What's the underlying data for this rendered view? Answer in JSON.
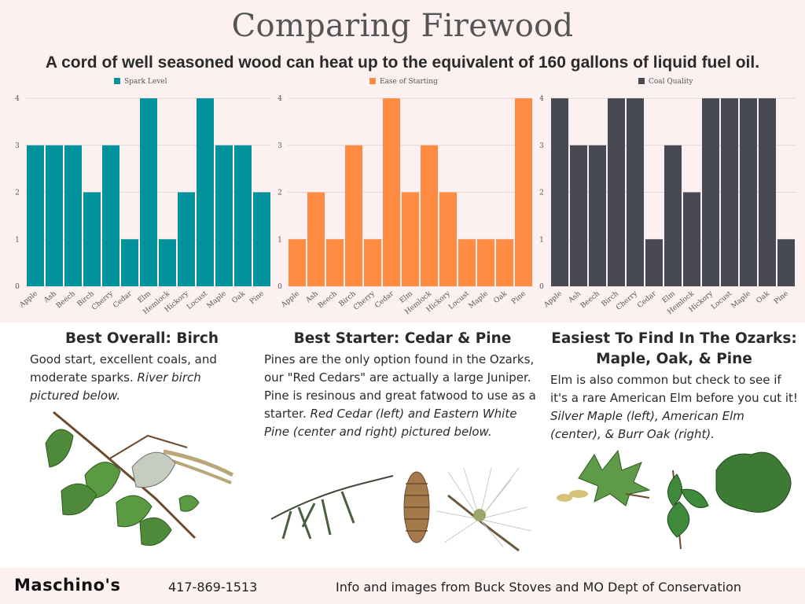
{
  "title": "Comparing Firewood",
  "subtitle": "A cord of well seasoned wood can heat up to the equivalent of 160 gallons of liquid fuel oil.",
  "colors": {
    "spark": "#00939b",
    "starting": "#ff8c42",
    "coal": "#474a52",
    "background": "#fdf0f0"
  },
  "chart_data": [
    {
      "type": "bar",
      "legend": "Spark Level",
      "legend_position": "top",
      "categories": [
        "Apple",
        "Ash",
        "Beech",
        "Birch",
        "Cherry",
        "Cedar",
        "Elm",
        "Hemlock",
        "Hickory",
        "Locust",
        "Maple",
        "Oak",
        "Pine"
      ],
      "values": [
        3,
        3,
        3,
        2,
        3,
        1,
        4,
        1,
        2,
        4,
        3,
        3,
        2
      ],
      "yticks": [
        "0",
        "1",
        "2",
        "3",
        "4"
      ],
      "ylim": [
        0,
        4
      ],
      "grid": true,
      "color": "#00939b"
    },
    {
      "type": "bar",
      "legend": "Ease of Starting",
      "legend_position": "top",
      "categories": [
        "Apple",
        "Ash",
        "Beech",
        "Birch",
        "Cherry",
        "Cedar",
        "Elm",
        "Hemlock",
        "Hickory",
        "Locust",
        "Maple",
        "Oak",
        "Pine"
      ],
      "values": [
        1,
        2,
        1,
        3,
        1,
        4,
        2,
        3,
        2,
        1,
        1,
        1,
        4
      ],
      "yticks": [
        "0",
        "1",
        "2",
        "3",
        "4"
      ],
      "ylim": [
        0,
        4
      ],
      "grid": true,
      "color": "#ff8c42"
    },
    {
      "type": "bar",
      "legend": "Coal Quality",
      "legend_position": "top",
      "categories": [
        "Apple",
        "Ash",
        "Beech",
        "Birch",
        "Cherry",
        "Cedar",
        "Elm",
        "Hemlock",
        "Hickory",
        "Locust",
        "Maple",
        "Oak",
        "Pine"
      ],
      "values": [
        4,
        3,
        3,
        4,
        4,
        1,
        3,
        2,
        4,
        4,
        4,
        4,
        1
      ],
      "yticks": [
        "0",
        "1",
        "2",
        "3",
        "4"
      ],
      "ylim": [
        0,
        4
      ],
      "grid": true,
      "color": "#474a52"
    }
  ],
  "sections": {
    "overall": {
      "heading": "Best Overall: Birch",
      "text": "Good start, excellent coals, and moderate sparks. ",
      "italic": "River birch pictured below."
    },
    "starter": {
      "heading": "Best Starter: Cedar & Pine",
      "text": " Pines are the only option found in the Ozarks, our \"Red Cedars\" are actually a large Juniper. Pine is resinous and great fatwood to use as a starter. ",
      "italic": "Red Cedar (left) and Eastern White Pine (center and right) pictured below."
    },
    "ozarks": {
      "heading": "Easiest To Find In The Ozarks: Maple, Oak, & Pine",
      "text": "Elm is also common but check to see if it's a rare American Elm before you cut it! ",
      "italic": "Silver Maple (left), American Elm (center), & Burr Oak (right)."
    }
  },
  "footer": {
    "brand": "Maschino's",
    "phone": "417-869-1513",
    "info": "Info and images from Buck Stoves and MO Dept of Conservation"
  }
}
